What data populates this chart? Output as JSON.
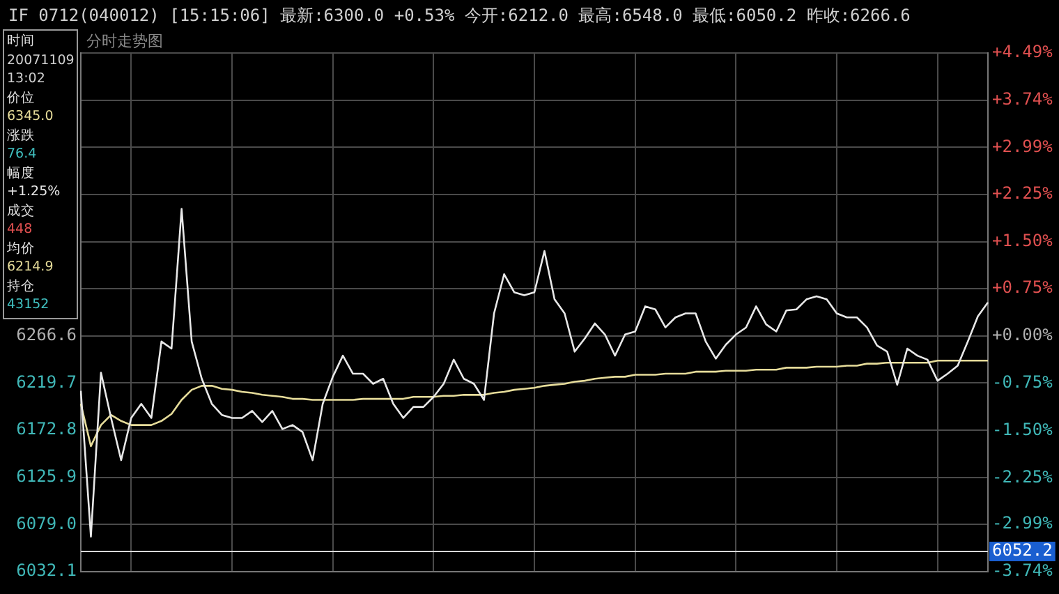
{
  "chart_data": {
    "type": "line",
    "title": "IF  0712(040012) [15:15:06] 最新:6300.0 +0.53% 今开:6212.0 最高:6548.0 最低:6050.2 昨收:6266.6",
    "subtitle": "分时走势图",
    "annotations": [
      "时间",
      "20071109",
      "13:02",
      "价位",
      "6345.0",
      "涨跌",
      "76.4",
      "幅度",
      "+1.25%",
      "成交",
      "448",
      "均价",
      "6214.9",
      "持仓",
      "43152"
    ],
    "categories": [
      null,
      null,
      null,
      null,
      null,
      null,
      null,
      null,
      null,
      null,
      null,
      null,
      null,
      null,
      null,
      null,
      null,
      null,
      null,
      null,
      null,
      null,
      null,
      null,
      null,
      null,
      null,
      null,
      null,
      null,
      null,
      null,
      null,
      null,
      null,
      null,
      null,
      null,
      null,
      null,
      null,
      null,
      null,
      null,
      null,
      null,
      null,
      null,
      null,
      null,
      null,
      null,
      null,
      null,
      null,
      null,
      null,
      null,
      null,
      null,
      null,
      null,
      null,
      null,
      null,
      null,
      null,
      null,
      null,
      null,
      null,
      null,
      null,
      null,
      null,
      null,
      null,
      null,
      null,
      null,
      null,
      null,
      null,
      null,
      null,
      null,
      null,
      null,
      null,
      null,
      null
    ],
    "series": [
      {
        "color": "#e8e8e8",
        "values": [
          6212,
          6067,
          6230,
          6185,
          6143,
          6185,
          6199,
          6185,
          6261,
          6254,
          6393,
          6261,
          6224,
          6199,
          6188,
          6185,
          6185,
          6192,
          6181,
          6192,
          6174,
          6178,
          6171,
          6143,
          6199,
          6226,
          6247,
          6229,
          6229,
          6219,
          6224,
          6199,
          6185,
          6196,
          6196,
          6206,
          6219,
          6243,
          6224,
          6219,
          6203,
          6289,
          6328,
          6310,
          6307,
          6310,
          6351,
          6303,
          6289,
          6251,
          6264,
          6279,
          6268,
          6247,
          6268,
          6271,
          6296,
          6293,
          6275,
          6285,
          6289,
          6289,
          6261,
          6244,
          6258,
          6268,
          6275,
          6296,
          6278,
          6271,
          6292,
          6293,
          6303,
          6306,
          6303,
          6289,
          6285,
          6285,
          6275,
          6257,
          6251,
          6218,
          6254,
          6247,
          6243,
          6222,
          6229,
          6237,
          6261,
          6286,
          6300
        ]
      },
      {
        "color": "#e6dc9a",
        "values": [
          6199,
          6157,
          6178,
          6188,
          6182,
          6178,
          6178,
          6178,
          6182,
          6189,
          6203,
          6213,
          6217,
          6217,
          6214,
          6213,
          6211,
          6210,
          6208,
          6207,
          6206,
          6204,
          6204,
          6203,
          6203,
          6203,
          6203,
          6203,
          6204,
          6204,
          6204,
          6204,
          6204,
          6206,
          6206,
          6206,
          6207,
          6207,
          6208,
          6208,
          6208,
          6210,
          6211,
          6213,
          6214,
          6215,
          6217,
          6218,
          6219,
          6221,
          6222,
          6224,
          6225,
          6226,
          6226,
          6228,
          6228,
          6228,
          6229,
          6229,
          6229,
          6231,
          6231,
          6231,
          6232,
          6232,
          6232,
          6233,
          6233,
          6233,
          6235,
          6235,
          6235,
          6236,
          6236,
          6236,
          6237,
          6237,
          6239,
          6239,
          6240,
          6240,
          6240,
          6240,
          6240,
          6242,
          6242,
          6242,
          6242,
          6242,
          6242
        ]
      }
    ],
    "ylim": [
      6032.1,
      6548.0
    ],
    "yticks": [
      {
        "value": 6032.1,
        "label": "6032.1"
      },
      {
        "value": 6079.0,
        "label": "6079.0"
      },
      {
        "value": 6125.9,
        "label": "6125.9"
      },
      {
        "value": 6172.8,
        "label": "6172.8"
      },
      {
        "value": 6219.7,
        "label": "6219.7"
      },
      {
        "value": 6266.6,
        "label": "6266.6"
      },
      {
        "value": 6313.5,
        "label": null
      },
      {
        "value": 6360.4,
        "label": null
      },
      {
        "value": 6407.3,
        "label": null
      },
      {
        "value": 6454.2,
        "label": null
      },
      {
        "value": 6501.1,
        "label": null
      },
      {
        "value": 6548.0,
        "label": null
      }
    ],
    "y2lim": [
      -3.74,
      4.49
    ],
    "y2ticks": [
      {
        "value": -3.74,
        "label": "-3.74%"
      },
      {
        "value": -2.99,
        "label": "-2.99%"
      },
      {
        "value": -2.25,
        "label": "-2.25%"
      },
      {
        "value": -1.5,
        "label": "-1.50%"
      },
      {
        "value": -0.75,
        "label": "-0.75%"
      },
      {
        "value": 0,
        "label": "+0.00%"
      },
      {
        "value": 0.75,
        "label": "+0.75%"
      },
      {
        "value": 1.5,
        "label": "+1.50%"
      },
      {
        "value": 2.25,
        "label": "+2.25%"
      },
      {
        "value": 2.99,
        "label": "+2.99%"
      },
      {
        "value": 3.74,
        "label": "+3.74%"
      },
      {
        "value": 4.49,
        "label": "+4.49%"
      }
    ],
    "ref_lines": [
      {
        "axis": "y",
        "value": 6052.2,
        "label": "6052.2",
        "color": "#d8d8d8"
      }
    ],
    "grid": true,
    "legend": false,
    "tick_labels": "y",
    "marker": "none",
    "line_style": "solid"
  }
}
